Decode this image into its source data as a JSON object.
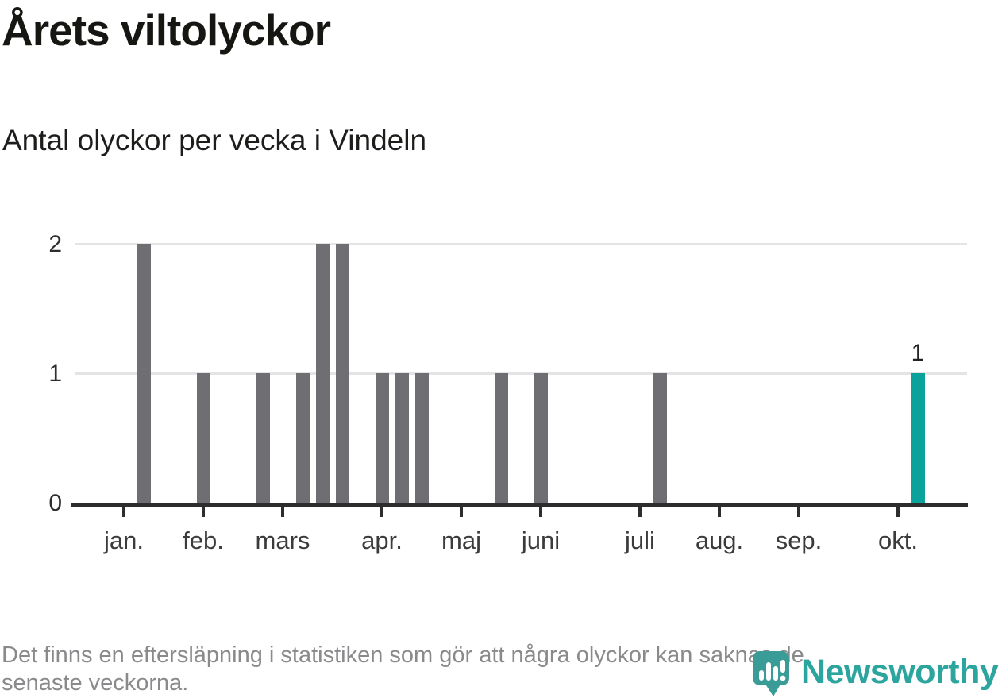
{
  "title": "Årets viltolyckor",
  "subtitle": "Antal olyckor per vecka i Vindeln",
  "footer": {
    "line1": "Det finns en eftersläpning i statistiken som gör att några olyckor kan saknas de",
    "line2": "senaste veckorna."
  },
  "logo": {
    "text": "Newsworthy"
  },
  "colors": {
    "bar": "#6f6f73",
    "highlight": "#0aa29a",
    "grid": "#e4e4e4",
    "axis": "#2d2d2d",
    "logo_icon": "#3a9c97",
    "logo_text": "#2ca59e",
    "footnote_text": "#8a8a8d"
  },
  "chart_data": {
    "type": "bar",
    "title": "Årets viltolyckor",
    "subtitle": "Antal olyckor per vecka i Vindeln",
    "xlabel": "",
    "ylabel": "",
    "x_unit": "vecka",
    "ylim": [
      0,
      2
    ],
    "yticks": [
      0,
      1,
      2
    ],
    "grid": "horizontal",
    "month_ticks": [
      {
        "label": "jan.",
        "week": 0
      },
      {
        "label": "feb.",
        "week": 4
      },
      {
        "label": "mars",
        "week": 8
      },
      {
        "label": "apr.",
        "week": 13
      },
      {
        "label": "maj",
        "week": 17
      },
      {
        "label": "juni",
        "week": 21
      },
      {
        "label": "juli",
        "week": 26
      },
      {
        "label": "aug.",
        "week": 30
      },
      {
        "label": "sep.",
        "week": 34
      },
      {
        "label": "okt.",
        "week": 39
      }
    ],
    "bars": [
      {
        "week": 1,
        "value": 2
      },
      {
        "week": 4,
        "value": 1
      },
      {
        "week": 7,
        "value": 1
      },
      {
        "week": 9,
        "value": 1
      },
      {
        "week": 10,
        "value": 2
      },
      {
        "week": 11,
        "value": 2
      },
      {
        "week": 13,
        "value": 1
      },
      {
        "week": 14,
        "value": 1
      },
      {
        "week": 15,
        "value": 1
      },
      {
        "week": 19,
        "value": 1
      },
      {
        "week": 21,
        "value": 1
      },
      {
        "week": 27,
        "value": 1
      },
      {
        "week": 40,
        "value": 1,
        "highlight": true,
        "label": "1"
      }
    ]
  }
}
